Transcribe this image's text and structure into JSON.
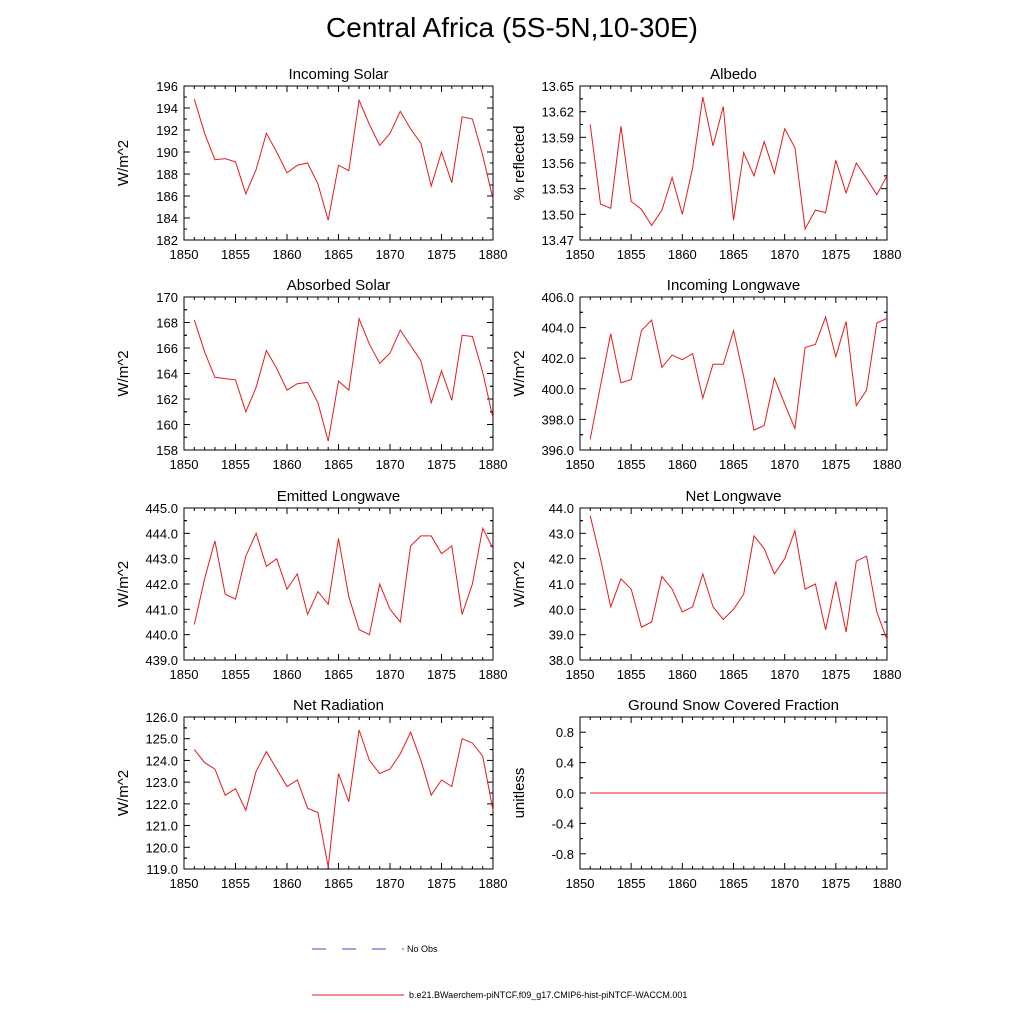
{
  "title": "Central Africa (5S-5N,10-30E)",
  "colors": {
    "model_line": "#e41a1c",
    "obs_line": "#3b4fb8",
    "axis": "#000000"
  },
  "legend": {
    "obs_label": "No Obs",
    "model_label": "b.e21.BWaerchem-piNTCF.f09_g17.CMIP6-hist-piNTCF-WACCM.001"
  },
  "chart_data": [
    {
      "type": "line",
      "title": "Incoming Solar",
      "ylabel": "W/m^2",
      "xlim": [
        1850,
        1880
      ],
      "ylim": [
        182,
        196
      ],
      "xticks": [
        1850,
        1855,
        1860,
        1865,
        1870,
        1875,
        1880
      ],
      "yticks": [
        "182",
        "184",
        "186",
        "188",
        "190",
        "192",
        "194",
        "196"
      ],
      "x": [
        1851,
        1852,
        1853,
        1854,
        1855,
        1856,
        1857,
        1858,
        1859,
        1860,
        1861,
        1862,
        1863,
        1864,
        1865,
        1866,
        1867,
        1868,
        1869,
        1870,
        1871,
        1872,
        1873,
        1874,
        1875,
        1876,
        1877,
        1878,
        1879,
        1880
      ],
      "values": [
        194.8,
        191.7,
        189.3,
        189.4,
        189.1,
        186.2,
        188.4,
        191.7,
        190.0,
        188.1,
        188.8,
        189.0,
        187.1,
        183.8,
        188.8,
        188.3,
        194.7,
        192.5,
        190.6,
        191.7,
        193.7,
        192.1,
        190.8,
        186.9,
        190.0,
        187.2,
        193.2,
        193.0,
        189.7,
        185.7
      ]
    },
    {
      "type": "line",
      "title": "Albedo",
      "ylabel": "% reflected",
      "xlim": [
        1850,
        1880
      ],
      "ylim": [
        13.47,
        13.65
      ],
      "xticks": [
        1850,
        1855,
        1860,
        1865,
        1870,
        1875,
        1880
      ],
      "yticks": [
        "13.47",
        "13.50",
        "13.53",
        "13.56",
        "13.59",
        "13.62",
        "13.65"
      ],
      "x": [
        1851,
        1852,
        1853,
        1854,
        1855,
        1856,
        1857,
        1858,
        1859,
        1860,
        1861,
        1862,
        1863,
        1864,
        1865,
        1866,
        1867,
        1868,
        1869,
        1870,
        1871,
        1872,
        1873,
        1874,
        1875,
        1876,
        1877,
        1878,
        1879,
        1880
      ],
      "values": [
        13.605,
        13.512,
        13.507,
        13.603,
        13.515,
        13.506,
        13.487,
        13.505,
        13.543,
        13.5,
        13.554,
        13.637,
        13.58,
        13.626,
        13.493,
        13.572,
        13.545,
        13.585,
        13.548,
        13.6,
        13.578,
        13.483,
        13.505,
        13.502,
        13.563,
        13.525,
        13.56,
        13.542,
        13.523,
        13.545
      ]
    },
    {
      "type": "line",
      "title": "Absorbed Solar",
      "ylabel": "W/m^2",
      "xlim": [
        1850,
        1880
      ],
      "ylim": [
        158,
        170
      ],
      "xticks": [
        1850,
        1855,
        1860,
        1865,
        1870,
        1875,
        1880
      ],
      "yticks": [
        "158",
        "160",
        "162",
        "164",
        "166",
        "168",
        "170"
      ],
      "x": [
        1851,
        1852,
        1853,
        1854,
        1855,
        1856,
        1857,
        1858,
        1859,
        1860,
        1861,
        1862,
        1863,
        1864,
        1865,
        1866,
        1867,
        1868,
        1869,
        1870,
        1871,
        1872,
        1873,
        1874,
        1875,
        1876,
        1877,
        1878,
        1879,
        1880
      ],
      "values": [
        168.2,
        165.7,
        163.7,
        163.6,
        163.5,
        161.0,
        162.9,
        165.8,
        164.4,
        162.7,
        163.2,
        163.3,
        161.7,
        158.7,
        163.4,
        162.7,
        168.3,
        166.3,
        164.8,
        165.6,
        167.4,
        166.2,
        165.0,
        161.7,
        164.2,
        161.9,
        167.0,
        166.9,
        164.1,
        160.5
      ]
    },
    {
      "type": "line",
      "title": "Incoming Longwave",
      "ylabel": "W/m^2",
      "xlim": [
        1850,
        1880
      ],
      "ylim": [
        396,
        406
      ],
      "xticks": [
        1850,
        1855,
        1860,
        1865,
        1870,
        1875,
        1880
      ],
      "yticks": [
        "396.0",
        "398.0",
        "400.0",
        "402.0",
        "404.0",
        "406.0"
      ],
      "x": [
        1851,
        1852,
        1853,
        1854,
        1855,
        1856,
        1857,
        1858,
        1859,
        1860,
        1861,
        1862,
        1863,
        1864,
        1865,
        1866,
        1867,
        1868,
        1869,
        1870,
        1871,
        1872,
        1873,
        1874,
        1875,
        1876,
        1877,
        1878,
        1879,
        1880
      ],
      "values": [
        396.7,
        400.2,
        403.6,
        400.4,
        400.6,
        403.8,
        404.5,
        401.4,
        402.2,
        401.9,
        402.3,
        399.4,
        401.6,
        401.6,
        403.8,
        400.8,
        397.3,
        397.6,
        400.7,
        399.0,
        397.4,
        402.7,
        402.9,
        404.7,
        402.1,
        404.4,
        398.9,
        399.9,
        404.3,
        404.6
      ]
    },
    {
      "type": "line",
      "title": "Emitted Longwave",
      "ylabel": "W/m^2",
      "xlim": [
        1850,
        1880
      ],
      "ylim": [
        439,
        445
      ],
      "xticks": [
        1850,
        1855,
        1860,
        1865,
        1870,
        1875,
        1880
      ],
      "yticks": [
        "439.0",
        "440.0",
        "441.0",
        "442.0",
        "443.0",
        "444.0",
        "445.0"
      ],
      "x": [
        1851,
        1852,
        1853,
        1854,
        1855,
        1856,
        1857,
        1858,
        1859,
        1860,
        1861,
        1862,
        1863,
        1864,
        1865,
        1866,
        1867,
        1868,
        1869,
        1870,
        1871,
        1872,
        1873,
        1874,
        1875,
        1876,
        1877,
        1878,
        1879,
        1880
      ],
      "values": [
        440.4,
        442.2,
        443.7,
        441.6,
        441.4,
        443.1,
        444.0,
        442.7,
        443.0,
        441.8,
        442.4,
        440.8,
        441.7,
        441.2,
        443.8,
        441.5,
        440.2,
        440.0,
        442.0,
        441.0,
        440.5,
        443.5,
        443.9,
        443.9,
        443.2,
        443.5,
        440.8,
        442.0,
        444.2,
        443.4
      ]
    },
    {
      "type": "line",
      "title": "Net Longwave",
      "ylabel": "W/m^2",
      "xlim": [
        1850,
        1880
      ],
      "ylim": [
        38,
        44
      ],
      "xticks": [
        1850,
        1855,
        1860,
        1865,
        1870,
        1875,
        1880
      ],
      "yticks": [
        "38.0",
        "39.0",
        "40.0",
        "41.0",
        "42.0",
        "43.0",
        "44.0"
      ],
      "x": [
        1851,
        1852,
        1853,
        1854,
        1855,
        1856,
        1857,
        1858,
        1859,
        1860,
        1861,
        1862,
        1863,
        1864,
        1865,
        1866,
        1867,
        1868,
        1869,
        1870,
        1871,
        1872,
        1873,
        1874,
        1875,
        1876,
        1877,
        1878,
        1879,
        1880
      ],
      "values": [
        43.7,
        42.0,
        40.1,
        41.2,
        40.8,
        39.3,
        39.5,
        41.3,
        40.8,
        39.9,
        40.1,
        41.4,
        40.1,
        39.6,
        40.0,
        40.6,
        42.9,
        42.4,
        41.4,
        42.0,
        43.1,
        40.8,
        41.0,
        39.2,
        41.1,
        39.1,
        41.9,
        42.1,
        39.9,
        38.8
      ]
    },
    {
      "type": "line",
      "title": "Net Radiation",
      "ylabel": "W/m^2",
      "xlim": [
        1850,
        1880
      ],
      "ylim": [
        119,
        126
      ],
      "xticks": [
        1850,
        1855,
        1860,
        1865,
        1870,
        1875,
        1880
      ],
      "yticks": [
        "119.0",
        "120.0",
        "121.0",
        "122.0",
        "123.0",
        "124.0",
        "125.0",
        "126.0"
      ],
      "x": [
        1851,
        1852,
        1853,
        1854,
        1855,
        1856,
        1857,
        1858,
        1859,
        1860,
        1861,
        1862,
        1863,
        1864,
        1865,
        1866,
        1867,
        1868,
        1869,
        1870,
        1871,
        1872,
        1873,
        1874,
        1875,
        1876,
        1877,
        1878,
        1879,
        1880
      ],
      "values": [
        124.5,
        123.9,
        123.6,
        122.4,
        122.7,
        121.7,
        123.5,
        124.4,
        123.6,
        122.8,
        123.1,
        121.8,
        121.6,
        119.1,
        123.4,
        122.1,
        125.4,
        124.0,
        123.4,
        123.6,
        124.3,
        125.3,
        124.0,
        122.4,
        123.1,
        122.8,
        125.0,
        124.8,
        124.2,
        121.7
      ]
    },
    {
      "type": "line",
      "title": "Ground Snow Covered Fraction",
      "ylabel": "unitless",
      "xlim": [
        1850,
        1880
      ],
      "ylim": [
        -1.0,
        1.0
      ],
      "xticks": [
        1850,
        1855,
        1860,
        1865,
        1870,
        1875,
        1880
      ],
      "yticks": [
        "-0.8",
        "-0.4",
        "0.0",
        "0.4",
        "0.8"
      ],
      "ytick_values": [
        -0.8,
        -0.4,
        0.0,
        0.4,
        0.8
      ],
      "x": [
        1851,
        1852,
        1853,
        1854,
        1855,
        1856,
        1857,
        1858,
        1859,
        1860,
        1861,
        1862,
        1863,
        1864,
        1865,
        1866,
        1867,
        1868,
        1869,
        1870,
        1871,
        1872,
        1873,
        1874,
        1875,
        1876,
        1877,
        1878,
        1879,
        1880
      ],
      "values": [
        0,
        0,
        0,
        0,
        0,
        0,
        0,
        0,
        0,
        0,
        0,
        0,
        0,
        0,
        0,
        0,
        0,
        0,
        0,
        0,
        0,
        0,
        0,
        0,
        0,
        0,
        0,
        0,
        0,
        0
      ]
    }
  ]
}
